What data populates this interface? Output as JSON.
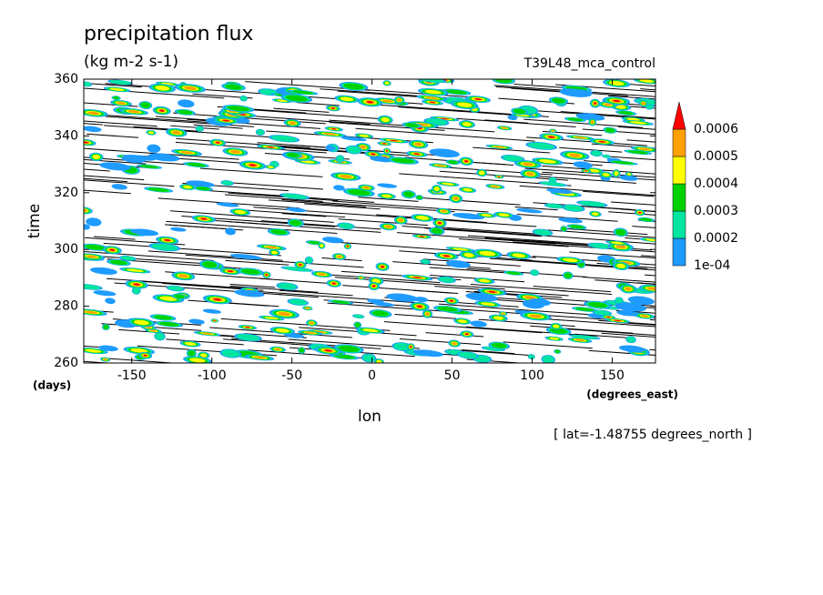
{
  "chart_data": {
    "type": "contour",
    "title": "precipitation flux",
    "subtitle": "(kg m-2 s-1)",
    "right_title": "T39L48_mca_control",
    "x_label": "lon",
    "x_unit": "(degrees_east)",
    "y_label": "time",
    "y_unit": "(days)",
    "annotation": "[ lat=-1.48755 degrees_north ]",
    "xlim": [
      -180,
      177
    ],
    "ylim": [
      260,
      360
    ],
    "xticks": [
      -150,
      -100,
      -50,
      0,
      50,
      100,
      150
    ],
    "yticks": [
      260,
      280,
      300,
      320,
      340,
      360
    ],
    "colorbar": {
      "levels": [
        {
          "value": 0.0001,
          "label": "1e-04"
        },
        0.0002,
        0.0003,
        0.0004,
        0.0005,
        0.0006
      ],
      "colors": [
        "#1e9bff",
        "#00e6a0",
        "#00d200",
        "#ffff00",
        "#ffa000"
      ],
      "extend_color": "#ff0000"
    }
  }
}
